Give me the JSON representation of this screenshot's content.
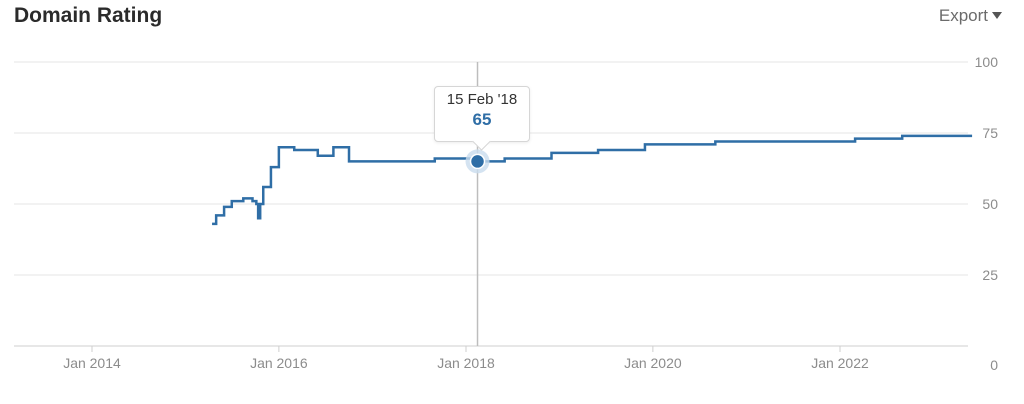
{
  "header": {
    "title": "Domain Rating",
    "export_label": "Export",
    "export_icon": "caret-down-icon"
  },
  "tooltip": {
    "date": "15 Feb '18",
    "value": "65"
  },
  "colors": {
    "line": "#2f6ea6",
    "grid": "#e6e6e6",
    "axis_text": "#8c8c8c",
    "crosshair": "#bdbdbd"
  },
  "chart_data": {
    "type": "line",
    "title": "Domain Rating",
    "xlabel": "",
    "ylabel": "",
    "x_range": [
      "2013-01",
      "2023-08"
    ],
    "ylim": [
      0,
      100
    ],
    "yticks": [
      0,
      25,
      50,
      75,
      100
    ],
    "xtick_labels": [
      "Jan 2014",
      "Jan 2016",
      "Jan 2018",
      "Jan 2020",
      "Jan 2022"
    ],
    "grid": true,
    "highlight": {
      "x": "2018-02-15",
      "y": 65
    },
    "series": [
      {
        "points": [
          [
            "2015-04-15",
            43
          ],
          [
            "2015-05-01",
            46
          ],
          [
            "2015-06-01",
            49
          ],
          [
            "2015-07-01",
            51
          ],
          [
            "2015-08-15",
            52
          ],
          [
            "2015-09-20",
            51
          ],
          [
            "2015-10-05",
            50
          ],
          [
            "2015-10-12",
            45
          ],
          [
            "2015-10-20",
            50
          ],
          [
            "2015-11-01",
            56
          ],
          [
            "2015-12-01",
            63
          ],
          [
            "2016-01-01",
            70
          ],
          [
            "2016-03-01",
            69
          ],
          [
            "2016-06-01",
            67
          ],
          [
            "2016-08-01",
            70
          ],
          [
            "2016-10-01",
            65
          ],
          [
            "2017-03-01",
            65
          ],
          [
            "2017-06-01",
            65
          ],
          [
            "2017-09-01",
            66
          ],
          [
            "2017-12-01",
            66
          ],
          [
            "2018-02-15",
            65
          ],
          [
            "2018-06-01",
            66
          ],
          [
            "2018-12-01",
            68
          ],
          [
            "2019-06-01",
            69
          ],
          [
            "2019-12-01",
            71
          ],
          [
            "2020-06-01",
            71
          ],
          [
            "2020-09-01",
            72
          ],
          [
            "2021-06-01",
            72
          ],
          [
            "2022-03-01",
            73
          ],
          [
            "2022-09-01",
            74
          ],
          [
            "2023-06-01",
            74
          ]
        ]
      }
    ]
  }
}
